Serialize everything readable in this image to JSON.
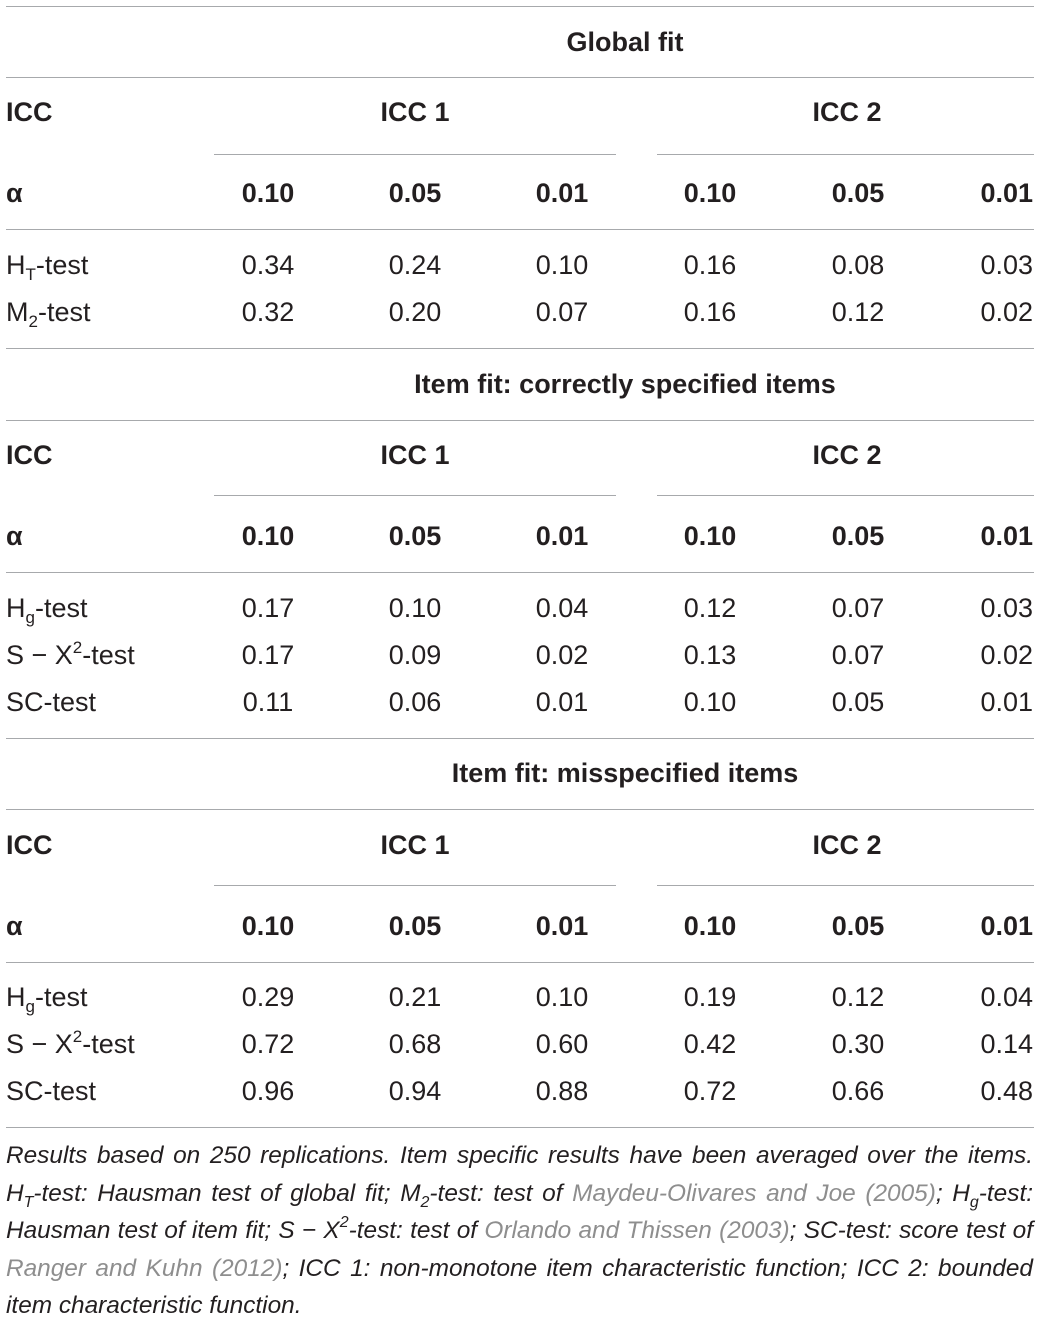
{
  "alpha_symbol": "α",
  "sections": [
    {
      "title": "Global fit",
      "icc_label": "ICC",
      "groups": [
        "ICC 1",
        "ICC 2"
      ],
      "alphas": [
        "0.10",
        "0.05",
        "0.01",
        "0.10",
        "0.05",
        "0.01"
      ],
      "rows": [
        {
          "name": "H",
          "sub": "T",
          "sup": "",
          "name_rest": "-test",
          "values": [
            "0.34",
            "0.24",
            "0.10",
            "0.16",
            "0.08",
            "0.03"
          ]
        },
        {
          "name": "M",
          "sub": "2",
          "sup": "",
          "name_rest": "-test",
          "values": [
            "0.32",
            "0.20",
            "0.07",
            "0.16",
            "0.12",
            "0.02"
          ]
        }
      ]
    },
    {
      "title": "Item fit: correctly specified items",
      "icc_label": "ICC",
      "groups": [
        "ICC 1",
        "ICC 2"
      ],
      "alphas": [
        "0.10",
        "0.05",
        "0.01",
        "0.10",
        "0.05",
        "0.01"
      ],
      "rows": [
        {
          "name": "H",
          "sub": "g",
          "sup": "",
          "name_rest": "-test",
          "values": [
            "0.17",
            "0.10",
            "0.04",
            "0.12",
            "0.07",
            "0.03"
          ]
        },
        {
          "name": "S − X",
          "sub": "",
          "sup": "2",
          "name_rest": "-test",
          "values": [
            "0.17",
            "0.09",
            "0.02",
            "0.13",
            "0.07",
            "0.02"
          ]
        },
        {
          "name": "SC-test",
          "sub": "",
          "sup": "",
          "name_rest": "",
          "values": [
            "0.11",
            "0.06",
            "0.01",
            "0.10",
            "0.05",
            "0.01"
          ]
        }
      ]
    },
    {
      "title": "Item fit: misspecified items",
      "icc_label": "ICC",
      "groups": [
        "ICC 1",
        "ICC 2"
      ],
      "alphas": [
        "0.10",
        "0.05",
        "0.01",
        "0.10",
        "0.05",
        "0.01"
      ],
      "rows": [
        {
          "name": "H",
          "sub": "g",
          "sup": "",
          "name_rest": "-test",
          "values": [
            "0.29",
            "0.21",
            "0.10",
            "0.19",
            "0.12",
            "0.04"
          ]
        },
        {
          "name": "S − X",
          "sub": "",
          "sup": "2",
          "name_rest": "-test",
          "values": [
            "0.72",
            "0.68",
            "0.60",
            "0.42",
            "0.30",
            "0.14"
          ]
        },
        {
          "name": "SC-test",
          "sub": "",
          "sup": "",
          "name_rest": "",
          "values": [
            "0.96",
            "0.94",
            "0.88",
            "0.72",
            "0.66",
            "0.48"
          ]
        }
      ]
    }
  ],
  "footnote": {
    "p1": "Results based on 250 replications. Item specific results have been averaged over the items. H",
    "p1_sub": "T",
    "p2": "-test: Hausman test of global fit; M",
    "p2_sub": "2",
    "p3": "-test: test of ",
    "ref1": "Maydeu-Olivares and Joe (2005)",
    "p4": "; H",
    "p4_sub": "g",
    "p5": "-test: Hausman test of item fit; S − X",
    "p5_sup": "2",
    "p6": "-test: test of ",
    "ref2": "Orlando and Thissen (2003)",
    "p7": "; SC-test: score test of ",
    "ref3": "Ranger and Kuhn (2012)",
    "p8": "; ICC 1: non-monotone item characteristic function; ICC 2: bounded item characteristic function."
  },
  "colors": {
    "text": "#231f20",
    "rule": "#a7a9ac",
    "reference_link": "#8e8e8e"
  }
}
